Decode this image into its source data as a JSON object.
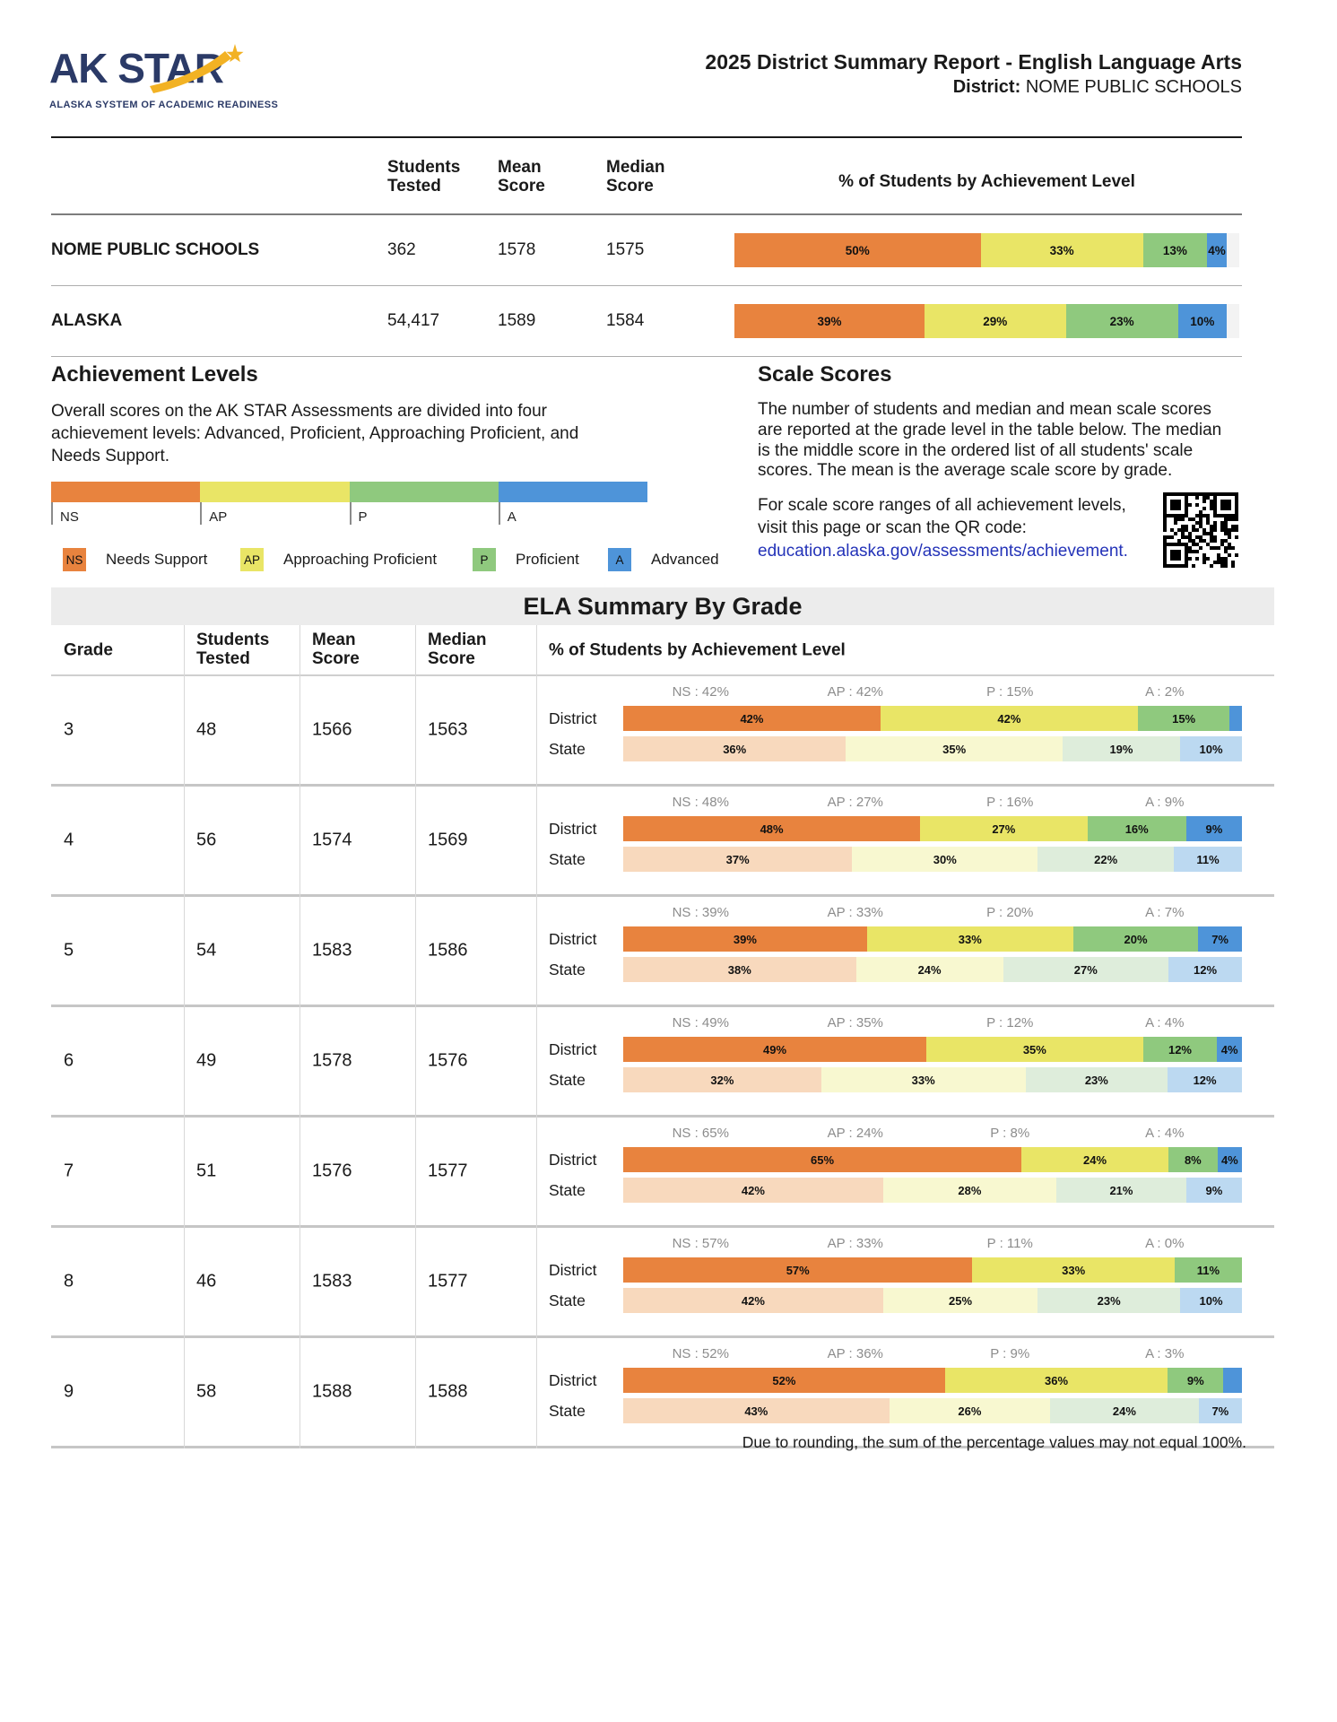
{
  "header": {
    "logo": {
      "title": "AK STAR",
      "subtitle": "ALASKA SYSTEM OF ACADEMIC READINESS"
    },
    "report_title": "2025 District Summary Report - English Language Arts",
    "district_label": "District:",
    "district_name": "NOME PUBLIC SCHOOLS"
  },
  "colors": {
    "district_levels": [
      "#E8833E",
      "#E9E566",
      "#8FC97E",
      "#4E94D9"
    ],
    "state_levels": [
      "#F8D9BD",
      "#F8F8D0",
      "#DEEDDB",
      "#BCD9F1"
    ],
    "navy": "#2B3A67",
    "gold": "#F2B224",
    "link": "#2433B8",
    "band_bg": "#ECECEC"
  },
  "summary_table": {
    "col_students": "Students Tested",
    "col_mean": "Mean Score",
    "col_median": "Median Score",
    "pct_header": "% of Students by Achievement Level",
    "rows": [
      {
        "name": "NOME PUBLIC SCHOOLS",
        "students": "362",
        "mean": "1578",
        "median": "1575",
        "values": [
          50,
          33,
          13,
          4
        ],
        "labels": [
          "50%",
          "33%",
          "13%",
          "4%"
        ]
      },
      {
        "name": "ALASKA",
        "students": "54,417",
        "mean": "1589",
        "median": "1584",
        "values": [
          39,
          29,
          23,
          10
        ],
        "labels": [
          "39%",
          "29%",
          "23%",
          "10%"
        ]
      }
    ]
  },
  "achievement_levels": {
    "heading": "Achievement Levels",
    "description": "Overall scores on the AK STAR Assessments are divided into four achievement levels: Advanced, Proficient, Approaching Proficient, and Needs Support.",
    "scale_labels": [
      "NS",
      "AP",
      "P",
      "A"
    ],
    "legend": [
      {
        "abbr": "NS",
        "label": "Needs Support"
      },
      {
        "abbr": "AP",
        "label": "Approaching Proficient"
      },
      {
        "abbr": "P",
        "label": "Proficient"
      },
      {
        "abbr": "A",
        "label": "Advanced"
      }
    ]
  },
  "scale_scores": {
    "heading": "Scale Scores",
    "description": "The number of students and median and mean scale scores are reported at the grade level in the table below. The median is the middle score in the ordered list of all students' scale scores. The mean is the average scale score by grade.",
    "qr_note": "For scale score ranges of all achievement levels, visit this page or scan the QR code:",
    "link_text": "education.alaska.gov/assessments/achievement."
  },
  "grade_table": {
    "title": "ELA Summary By Grade",
    "col_grade": "Grade",
    "col_students": "Students Tested",
    "col_mean": "Mean Score",
    "col_median": "Median Score",
    "col_pct": "% of Students by Achievement Level",
    "district_label": "District",
    "state_label": "State",
    "rows": [
      {
        "grade": "3",
        "students": "48",
        "mean": "1566",
        "median": "1563",
        "summary_labels": [
          "NS : 42%",
          "AP : 42%",
          "P : 15%",
          "A : 2%"
        ],
        "district": {
          "values": [
            42,
            42,
            15,
            2
          ],
          "labels": [
            "42%",
            "42%",
            "15%",
            ""
          ]
        },
        "state": {
          "values": [
            36,
            35,
            19,
            10
          ],
          "labels": [
            "36%",
            "35%",
            "19%",
            "10%"
          ]
        }
      },
      {
        "grade": "4",
        "students": "56",
        "mean": "1574",
        "median": "1569",
        "summary_labels": [
          "NS : 48%",
          "AP : 27%",
          "P : 16%",
          "A : 9%"
        ],
        "district": {
          "values": [
            48,
            27,
            16,
            9
          ],
          "labels": [
            "48%",
            "27%",
            "16%",
            "9%"
          ]
        },
        "state": {
          "values": [
            37,
            30,
            22,
            11
          ],
          "labels": [
            "37%",
            "30%",
            "22%",
            "11%"
          ]
        }
      },
      {
        "grade": "5",
        "students": "54",
        "mean": "1583",
        "median": "1586",
        "summary_labels": [
          "NS : 39%",
          "AP : 33%",
          "P : 20%",
          "A : 7%"
        ],
        "district": {
          "values": [
            39,
            33,
            20,
            7
          ],
          "labels": [
            "39%",
            "33%",
            "20%",
            "7%"
          ]
        },
        "state": {
          "values": [
            38,
            24,
            27,
            12
          ],
          "labels": [
            "38%",
            "24%",
            "27%",
            "12%"
          ]
        }
      },
      {
        "grade": "6",
        "students": "49",
        "mean": "1578",
        "median": "1576",
        "summary_labels": [
          "NS : 49%",
          "AP : 35%",
          "P : 12%",
          "A : 4%"
        ],
        "district": {
          "values": [
            49,
            35,
            12,
            4
          ],
          "labels": [
            "49%",
            "35%",
            "12%",
            "4%"
          ]
        },
        "state": {
          "values": [
            32,
            33,
            23,
            12
          ],
          "labels": [
            "32%",
            "33%",
            "23%",
            "12%"
          ]
        }
      },
      {
        "grade": "7",
        "students": "51",
        "mean": "1576",
        "median": "1577",
        "summary_labels": [
          "NS : 65%",
          "AP : 24%",
          "P : 8%",
          "A : 4%"
        ],
        "district": {
          "values": [
            65,
            24,
            8,
            4
          ],
          "labels": [
            "65%",
            "24%",
            "8%",
            "4%"
          ]
        },
        "state": {
          "values": [
            42,
            28,
            21,
            9
          ],
          "labels": [
            "42%",
            "28%",
            "21%",
            "9%"
          ]
        }
      },
      {
        "grade": "8",
        "students": "46",
        "mean": "1583",
        "median": "1577",
        "summary_labels": [
          "NS : 57%",
          "AP : 33%",
          "P : 11%",
          "A : 0%"
        ],
        "district": {
          "values": [
            57,
            33,
            11,
            0
          ],
          "labels": [
            "57%",
            "33%",
            "11%",
            ""
          ]
        },
        "state": {
          "values": [
            42,
            25,
            23,
            10
          ],
          "labels": [
            "42%",
            "25%",
            "23%",
            "10%"
          ]
        }
      },
      {
        "grade": "9",
        "students": "58",
        "mean": "1588",
        "median": "1588",
        "summary_labels": [
          "NS : 52%",
          "AP : 36%",
          "P : 9%",
          "A : 3%"
        ],
        "district": {
          "values": [
            52,
            36,
            9,
            3
          ],
          "labels": [
            "52%",
            "36%",
            "9%",
            ""
          ]
        },
        "state": {
          "values": [
            43,
            26,
            24,
            7
          ],
          "labels": [
            "43%",
            "26%",
            "24%",
            "7%"
          ]
        }
      }
    ]
  },
  "footer": "Due to rounding, the sum of the percentage values may not equal 100%."
}
